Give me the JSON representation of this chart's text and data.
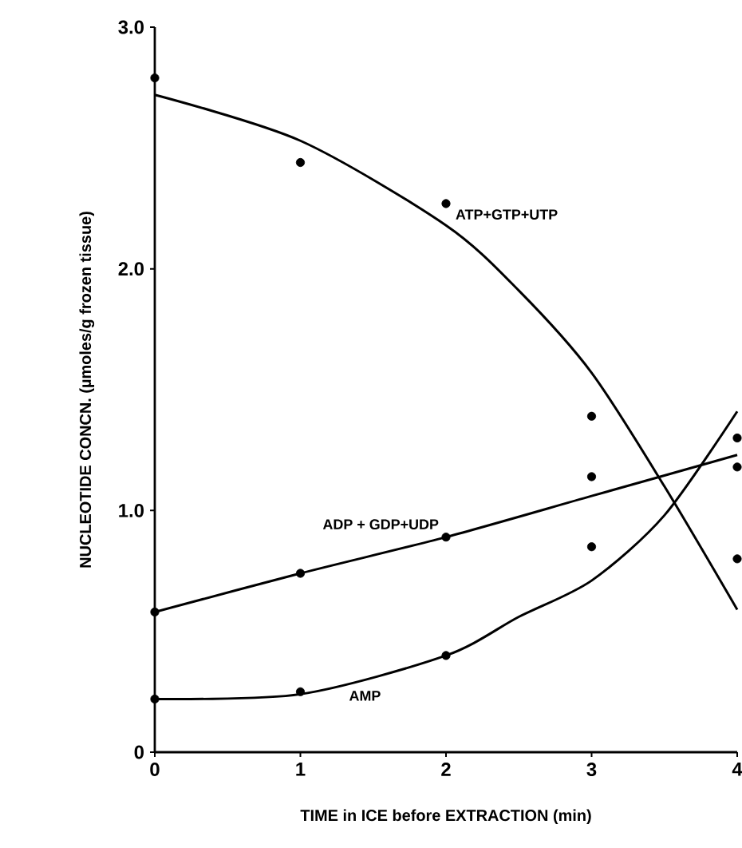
{
  "chart_data": {
    "type": "line",
    "xlabel": "TIME in ICE before EXTRACTION (min)",
    "ylabel": "NUCLEOTIDE CONCN. (µmoles/g frozen tissue)",
    "xlim": [
      0,
      4
    ],
    "ylim": [
      0,
      3
    ],
    "xticks": [
      0,
      1,
      2,
      3,
      4
    ],
    "yticks": [
      {
        "value": 0,
        "label": "0"
      },
      {
        "value": 1,
        "label": "1.0"
      },
      {
        "value": 2,
        "label": "2.0"
      },
      {
        "value": 3,
        "label": "3.0"
      }
    ],
    "grid": false,
    "series": [
      {
        "type": "scatter",
        "marker": "circle",
        "color": "#000000",
        "x": [
          0,
          1,
          2,
          3,
          4
        ],
        "values": [
          2.79,
          2.44,
          2.27,
          1.39,
          0.8
        ]
      },
      {
        "type": "scatter",
        "marker": "circle",
        "color": "#000000",
        "x": [
          0,
          1,
          2,
          3,
          4
        ],
        "values": [
          0.58,
          0.74,
          0.89,
          1.14,
          1.18
        ]
      },
      {
        "type": "scatter",
        "marker": "circle",
        "color": "#000000",
        "x": [
          0,
          1,
          2,
          3,
          4
        ],
        "values": [
          0.22,
          0.25,
          0.4,
          0.85,
          1.3
        ]
      },
      {
        "name": "ATP+GTP+UTP",
        "marker": "none",
        "color": "#000000",
        "x": [
          0,
          1,
          2,
          2.5,
          3,
          3.5,
          4
        ],
        "values": [
          2.72,
          2.53,
          2.18,
          1.91,
          1.57,
          1.1,
          0.59
        ]
      },
      {
        "name": "ADP + GDP+UDP",
        "marker": "none",
        "color": "#000000",
        "x": [
          0,
          1,
          2,
          3,
          4
        ],
        "values": [
          0.58,
          0.74,
          0.89,
          1.06,
          1.23
        ]
      },
      {
        "name": "AMP",
        "marker": "none",
        "color": "#000000",
        "x": [
          0,
          1,
          2,
          2.5,
          3,
          3.5,
          4
        ],
        "values": [
          0.22,
          0.24,
          0.4,
          0.56,
          0.71,
          0.98,
          1.41
        ]
      }
    ]
  }
}
